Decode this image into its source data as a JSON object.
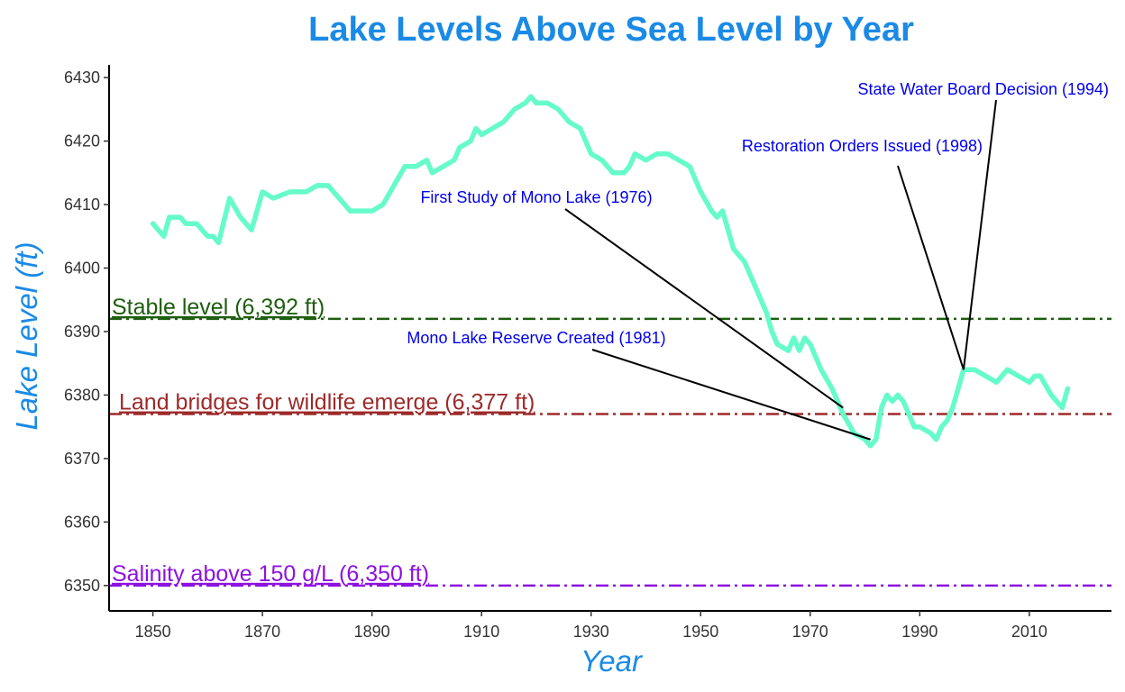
{
  "colors": {
    "title": "#1a8ae6",
    "axis_title": "#1a8ae6",
    "line": "#66fbca",
    "annotation_text": "#0000ee",
    "annotation_line": "#000000"
  },
  "chart_data": {
    "type": "line",
    "title": "Lake Levels Above Sea Level by Year",
    "xlabel": "Year",
    "ylabel": "Lake Level (ft)",
    "xlim": [
      1842,
      2025
    ],
    "ylim": [
      6346,
      6432
    ],
    "x_ticks": [
      "1850",
      "1870",
      "1890",
      "1910",
      "1930",
      "1950",
      "1970",
      "1990",
      "2010"
    ],
    "y_ticks": [
      "6350",
      "6360",
      "6370",
      "6380",
      "6390",
      "6400",
      "6410",
      "6420",
      "6430"
    ],
    "grid": false,
    "series": [
      {
        "x": [
          1850,
          1852,
          1853,
          1855,
          1856,
          1858,
          1860,
          1861,
          1862,
          1864,
          1866,
          1868,
          1869,
          1870,
          1872,
          1875,
          1878,
          1880,
          1882,
          1884,
          1886,
          1888,
          1890,
          1892,
          1894,
          1896,
          1898,
          1900,
          1901,
          1903,
          1905,
          1906,
          1908,
          1909,
          1910,
          1912,
          1914,
          1916,
          1918,
          1919,
          1920,
          1922,
          1924,
          1926,
          1928,
          1929,
          1930,
          1932,
          1934,
          1936,
          1937,
          1938,
          1940,
          1942,
          1944,
          1946,
          1948,
          1950,
          1952,
          1953,
          1954,
          1956,
          1958,
          1960,
          1962,
          1963,
          1964,
          1966,
          1967,
          1968,
          1969,
          1970,
          1972,
          1974,
          1976,
          1978,
          1980,
          1981,
          1982,
          1983,
          1984,
          1985,
          1986,
          1987,
          1988,
          1989,
          1990,
          1992,
          1993,
          1994,
          1995,
          1996,
          1997,
          1998,
          1999,
          2000,
          2002,
          2004,
          2006,
          2008,
          2010,
          2011,
          2012,
          2014,
          2016,
          2017
        ],
        "y": [
          6407,
          6405,
          6408,
          6408,
          6407,
          6407,
          6405,
          6405,
          6404,
          6411,
          6408,
          6406,
          6409,
          6412,
          6411,
          6412,
          6412,
          6413,
          6413,
          6411,
          6409,
          6409,
          6409,
          6410,
          6413,
          6416,
          6416,
          6417,
          6415,
          6416,
          6417,
          6419,
          6420,
          6422,
          6421,
          6422,
          6423,
          6425,
          6426,
          6427,
          6426,
          6426,
          6425,
          6423,
          6422,
          6420,
          6418,
          6417,
          6415,
          6415,
          6416,
          6418,
          6417,
          6418,
          6418,
          6417,
          6416,
          6412,
          6409,
          6408,
          6409,
          6403,
          6401,
          6397,
          6393,
          6390,
          6388,
          6387,
          6389,
          6387,
          6389,
          6388,
          6384,
          6381,
          6377,
          6374,
          6373,
          6372,
          6373,
          6378,
          6380,
          6379,
          6380,
          6379,
          6377,
          6375,
          6375,
          6374,
          6373,
          6375,
          6376,
          6378,
          6381,
          6384,
          6384,
          6384,
          6383,
          6382,
          6384,
          6383,
          6382,
          6383,
          6383,
          6380,
          6378,
          6381
        ]
      }
    ],
    "reference_lines": [
      {
        "value": 6392,
        "label": "Stable level (6,392 ft)",
        "color": "#1f5e10"
      },
      {
        "value": 6377,
        "label": "Land bridges for wildlife emerge (6,377 ft)",
        "color": "#9e2a2a"
      },
      {
        "value": 6350,
        "label": "Salinity above 150 g/L (6,350 ft)",
        "color": "#8e12e0"
      }
    ],
    "annotations": [
      {
        "text": "State Water Board Decision (1994)",
        "point": [
          1998,
          6384
        ],
        "anchor": "end"
      },
      {
        "text": "Restoration Orders Issued (1998)",
        "point": [
          1998,
          6384
        ],
        "anchor": "end"
      },
      {
        "text": "First Study of Mono Lake (1976)",
        "point": [
          1976,
          6378
        ],
        "anchor": "middle"
      },
      {
        "text": "Mono Lake Reserve Created (1981)",
        "point": [
          1981,
          6373
        ],
        "anchor": "middle"
      }
    ]
  }
}
